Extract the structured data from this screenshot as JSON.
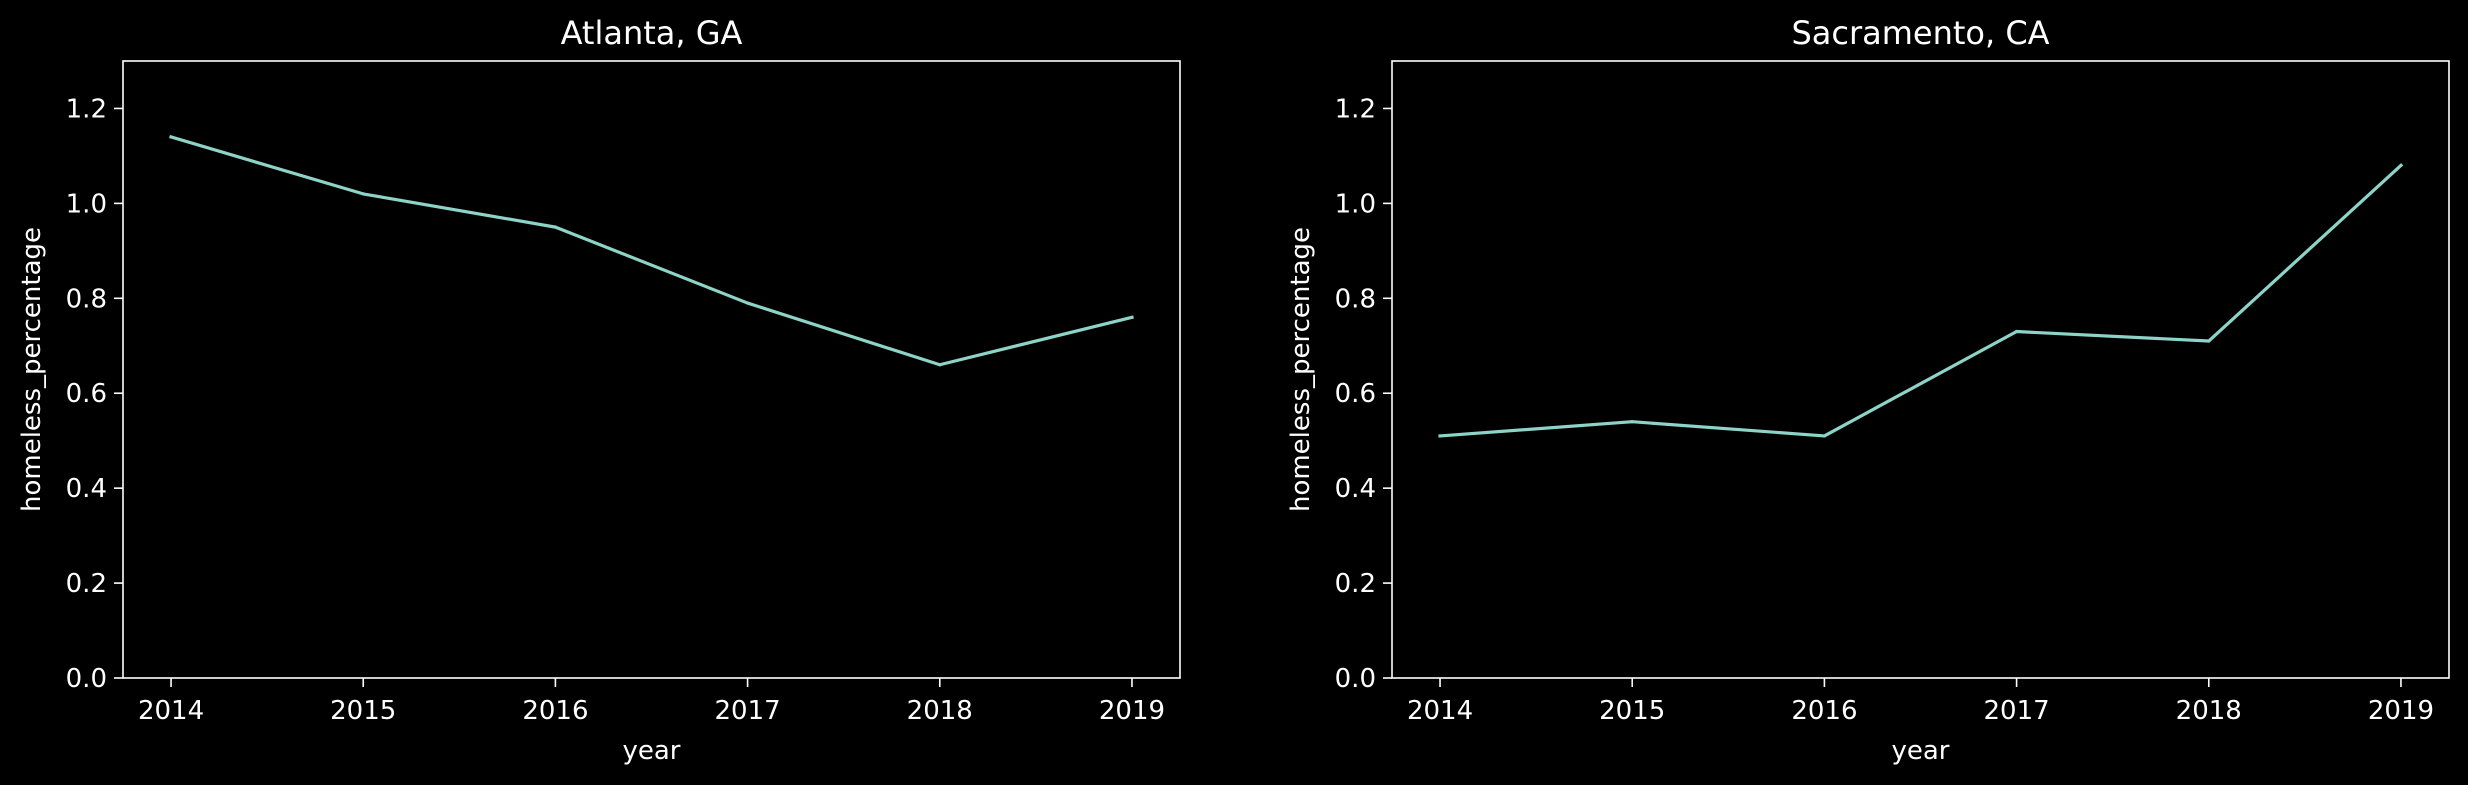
{
  "chart_data": [
    {
      "type": "line",
      "title": "Atlanta, GA",
      "xlabel": "year",
      "ylabel": "homeless_percentage",
      "x": [
        2014,
        2015,
        2016,
        2017,
        2018,
        2019
      ],
      "x_tick_labels": [
        "2014",
        "2015",
        "2016",
        "2017",
        "2018",
        "2019"
      ],
      "y_tick_labels": [
        "0.0",
        "0.2",
        "0.4",
        "0.6",
        "0.8",
        "1.0",
        "1.2"
      ],
      "y_ticks": [
        0.0,
        0.2,
        0.4,
        0.6,
        0.8,
        1.0,
        1.2
      ],
      "ylim": [
        0.0,
        1.3
      ],
      "xlim": [
        2013.75,
        2019.25
      ],
      "grid": false,
      "series": [
        {
          "values": [
            1.14,
            1.02,
            0.95,
            0.79,
            0.66,
            0.76
          ]
        }
      ]
    },
    {
      "type": "line",
      "title": "Sacramento, CA",
      "xlabel": "year",
      "ylabel": "homeless_percentage",
      "x": [
        2014,
        2015,
        2016,
        2017,
        2018,
        2019
      ],
      "x_tick_labels": [
        "2014",
        "2015",
        "2016",
        "2017",
        "2018",
        "2019"
      ],
      "y_tick_labels": [
        "0.0",
        "0.2",
        "0.4",
        "0.6",
        "0.8",
        "1.0",
        "1.2"
      ],
      "y_ticks": [
        0.0,
        0.2,
        0.4,
        0.6,
        0.8,
        1.0,
        1.2
      ],
      "ylim": [
        0.0,
        1.3
      ],
      "xlim": [
        2013.75,
        2019.25
      ],
      "grid": false,
      "series": [
        {
          "values": [
            0.51,
            0.54,
            0.51,
            0.73,
            0.71,
            1.08
          ]
        }
      ]
    }
  ],
  "colors": {
    "background": "#000000",
    "axes": "#ffffff",
    "text": "#ffffff",
    "line": "#8dd3c7"
  }
}
